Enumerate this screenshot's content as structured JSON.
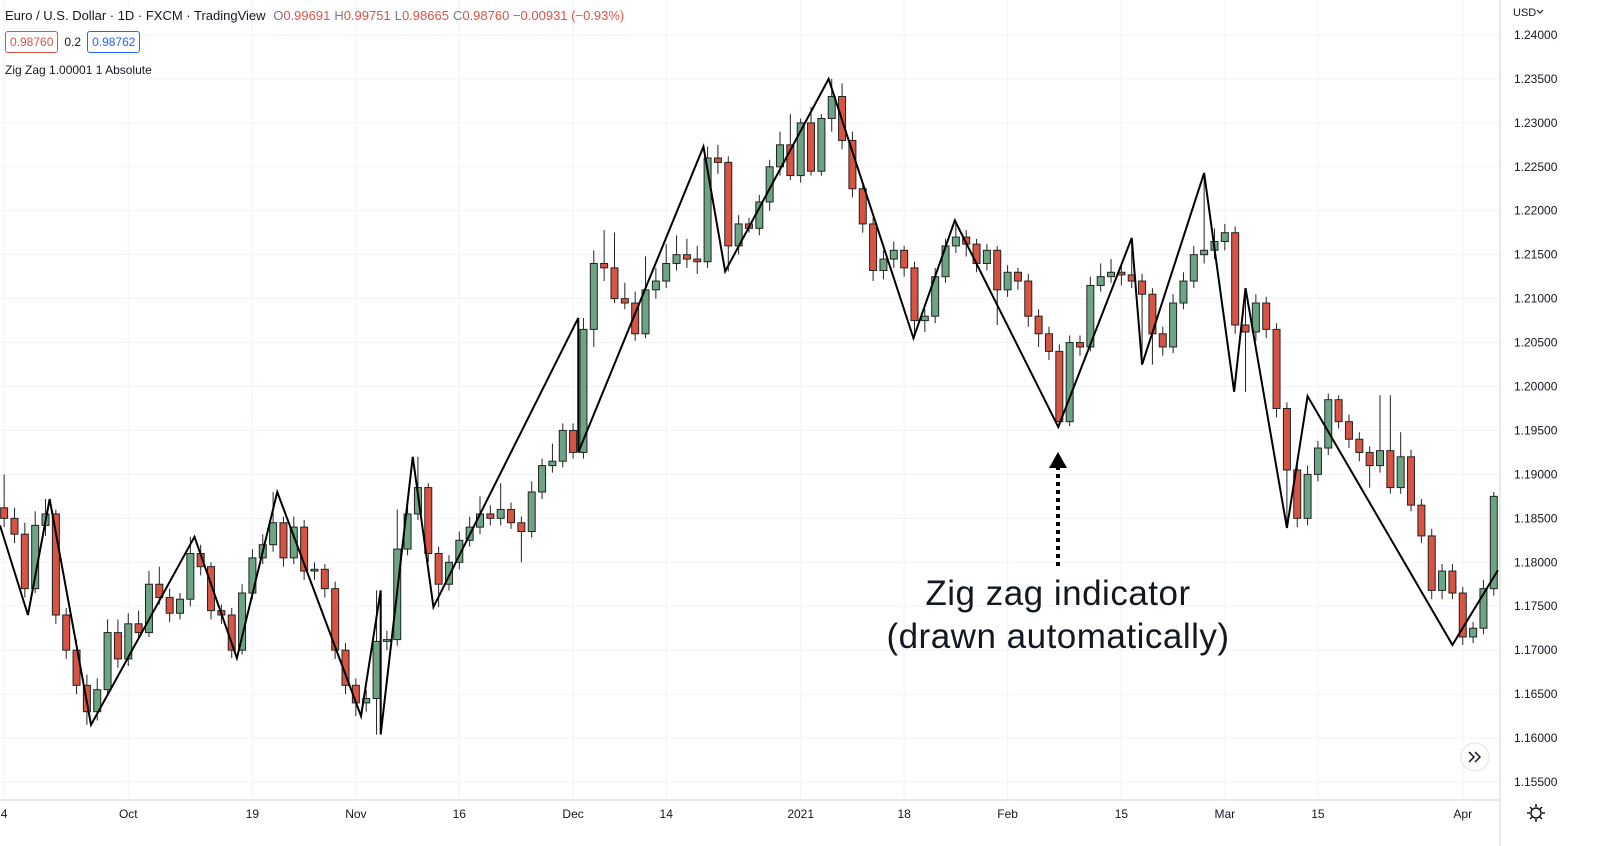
{
  "header": {
    "symbol": "Euro / U.S. Dollar · 1D · FXCM · TradingView",
    "ohlc": [
      {
        "label": "O",
        "value": "0.99691"
      },
      {
        "label": "H",
        "value": "0.99751"
      },
      {
        "label": "L",
        "value": "0.98665"
      },
      {
        "label": "C",
        "value": "0.98760"
      }
    ],
    "change": "−0.00931 (−0.93%)",
    "sell": "0.98760",
    "spread": "0.2",
    "buy": "0.98762",
    "indicator": "Zig Zag 1.00001 1 Absolute",
    "currency": "USD"
  },
  "annotation": [
    "Zig zag indicator",
    "(drawn automatically)"
  ],
  "chart_data": {
    "type": "candlestick",
    "up_color": "#6ba583",
    "down_color": "#d75442",
    "border_color": "#222222",
    "grid": true,
    "xlim": [
      -0.4,
      144.6
    ],
    "ylim": [
      1.15295,
      1.24398
    ],
    "xticks": [
      {
        "value": 0,
        "label": "4"
      },
      {
        "value": 12,
        "label": "Oct"
      },
      {
        "value": 24,
        "label": "19"
      },
      {
        "value": 34,
        "label": "Nov"
      },
      {
        "value": 44,
        "label": "16"
      },
      {
        "value": 55,
        "label": "Dec"
      },
      {
        "value": 64,
        "label": "14"
      },
      {
        "value": 77,
        "label": "2021"
      },
      {
        "value": 87,
        "label": "18"
      },
      {
        "value": 97,
        "label": "Feb"
      },
      {
        "value": 108,
        "label": "15"
      },
      {
        "value": 118,
        "label": "Mar"
      },
      {
        "value": 127,
        "label": "15"
      },
      {
        "value": 141,
        "label": "Apr"
      }
    ],
    "yticks": [
      {
        "value": 1.24,
        "label": "1.24000"
      },
      {
        "value": 1.235,
        "label": "1.23500"
      },
      {
        "value": 1.23,
        "label": "1.23000"
      },
      {
        "value": 1.225,
        "label": "1.22500"
      },
      {
        "value": 1.22,
        "label": "1.22000"
      },
      {
        "value": 1.215,
        "label": "1.21500"
      },
      {
        "value": 1.21,
        "label": "1.21000"
      },
      {
        "value": 1.205,
        "label": "1.20500"
      },
      {
        "value": 1.2,
        "label": "1.20000"
      },
      {
        "value": 1.195,
        "label": "1.19500"
      },
      {
        "value": 1.19,
        "label": "1.19000"
      },
      {
        "value": 1.185,
        "label": "1.18500"
      },
      {
        "value": 1.18,
        "label": "1.18000"
      },
      {
        "value": 1.175,
        "label": "1.17500"
      },
      {
        "value": 1.17,
        "label": "1.17000"
      },
      {
        "value": 1.165,
        "label": "1.16500"
      },
      {
        "value": 1.16,
        "label": "1.16000"
      },
      {
        "value": 1.155,
        "label": "1.15500"
      }
    ],
    "ohlc": [
      [
        1.1862,
        1.19,
        1.184,
        1.185
      ],
      [
        1.185,
        1.1862,
        1.1822,
        1.1832
      ],
      [
        1.1832,
        1.1845,
        1.176,
        1.177
      ],
      [
        1.177,
        1.1858,
        1.1765,
        1.1842
      ],
      [
        1.1842,
        1.1872,
        1.183,
        1.1855
      ],
      [
        1.1855,
        1.186,
        1.173,
        1.174
      ],
      [
        1.174,
        1.1748,
        1.169,
        1.17
      ],
      [
        1.17,
        1.1712,
        1.165,
        1.166
      ],
      [
        1.166,
        1.1672,
        1.1615,
        1.163
      ],
      [
        1.163,
        1.1668,
        1.162,
        1.1655
      ],
      [
        1.1655,
        1.1735,
        1.165,
        1.172
      ],
      [
        1.172,
        1.1735,
        1.168,
        1.169
      ],
      [
        1.169,
        1.1742,
        1.1682,
        1.173
      ],
      [
        1.173,
        1.1745,
        1.1712,
        1.172
      ],
      [
        1.172,
        1.179,
        1.1715,
        1.1775
      ],
      [
        1.1775,
        1.1795,
        1.1752,
        1.176
      ],
      [
        1.176,
        1.177,
        1.1732,
        1.1742
      ],
      [
        1.1742,
        1.1765,
        1.1735,
        1.1758
      ],
      [
        1.1758,
        1.1829,
        1.175,
        1.181
      ],
      [
        1.181,
        1.182,
        1.1785,
        1.1795
      ],
      [
        1.1795,
        1.18,
        1.1735,
        1.1745
      ],
      [
        1.1745,
        1.1752,
        1.173,
        1.174
      ],
      [
        1.174,
        1.1748,
        1.1691,
        1.17
      ],
      [
        1.17,
        1.1775,
        1.1695,
        1.1765
      ],
      [
        1.1765,
        1.1815,
        1.1758,
        1.1805
      ],
      [
        1.1805,
        1.1832,
        1.1798,
        1.182
      ],
      [
        1.182,
        1.188,
        1.1812,
        1.1845
      ],
      [
        1.1845,
        1.1852,
        1.1795,
        1.1805
      ],
      [
        1.1805,
        1.1852,
        1.1798,
        1.184
      ],
      [
        1.184,
        1.1848,
        1.178,
        1.179
      ],
      [
        1.179,
        1.18,
        1.178,
        1.1792
      ],
      [
        1.1792,
        1.1798,
        1.176,
        1.177
      ],
      [
        1.177,
        1.1778,
        1.169,
        1.17
      ],
      [
        1.17,
        1.1708,
        1.165,
        1.166
      ],
      [
        1.166,
        1.1668,
        1.1625,
        1.164
      ],
      [
        1.164,
        1.1655,
        1.163,
        1.1645
      ],
      [
        1.1645,
        1.1768,
        1.1604,
        1.171
      ],
      [
        1.171,
        1.1722,
        1.17,
        1.1712
      ],
      [
        1.1712,
        1.186,
        1.1705,
        1.1815
      ],
      [
        1.1815,
        1.187,
        1.1808,
        1.1855
      ],
      [
        1.1855,
        1.192,
        1.1848,
        1.1885
      ],
      [
        1.1885,
        1.189,
        1.18,
        1.181
      ],
      [
        1.181,
        1.1818,
        1.1749,
        1.1775
      ],
      [
        1.1775,
        1.1808,
        1.1768,
        1.18
      ],
      [
        1.18,
        1.1835,
        1.1792,
        1.1825
      ],
      [
        1.1825,
        1.1852,
        1.1818,
        1.184
      ],
      [
        1.184,
        1.1875,
        1.1832,
        1.1855
      ],
      [
        1.1855,
        1.1865,
        1.1842,
        1.185
      ],
      [
        1.185,
        1.189,
        1.1842,
        1.186
      ],
      [
        1.186,
        1.1868,
        1.1838,
        1.1845
      ],
      [
        1.1845,
        1.1852,
        1.18,
        1.1835
      ],
      [
        1.1835,
        1.1892,
        1.1828,
        1.188
      ],
      [
        1.188,
        1.1918,
        1.1872,
        1.191
      ],
      [
        1.191,
        1.1935,
        1.1902,
        1.1915
      ],
      [
        1.1915,
        1.1958,
        1.1908,
        1.195
      ],
      [
        1.195,
        1.1958,
        1.1918,
        1.1925
      ],
      [
        1.1925,
        1.2078,
        1.1918,
        1.2065
      ],
      [
        1.2065,
        1.2155,
        1.2045,
        1.214
      ],
      [
        1.214,
        1.2178,
        1.212,
        1.2135
      ],
      [
        1.2135,
        1.2175,
        1.2095,
        1.21
      ],
      [
        1.21,
        1.2118,
        1.2088,
        1.2095
      ],
      [
        1.2095,
        1.2108,
        1.2052,
        1.206
      ],
      [
        1.206,
        1.2148,
        1.2055,
        1.211
      ],
      [
        1.211,
        1.2135,
        1.21,
        1.212
      ],
      [
        1.212,
        1.2162,
        1.2112,
        1.214
      ],
      [
        1.214,
        1.2172,
        1.2132,
        1.215
      ],
      [
        1.215,
        1.2168,
        1.2135,
        1.2145
      ],
      [
        1.2145,
        1.216,
        1.2128,
        1.2142
      ],
      [
        1.2142,
        1.2273,
        1.2135,
        1.226
      ],
      [
        1.226,
        1.2275,
        1.2242,
        1.2255
      ],
      [
        1.2255,
        1.2262,
        1.2131,
        1.216
      ],
      [
        1.216,
        1.2195,
        1.215,
        1.2185
      ],
      [
        1.2185,
        1.2192,
        1.2175,
        1.218
      ],
      [
        1.218,
        1.2218,
        1.2172,
        1.221
      ],
      [
        1.221,
        1.2258,
        1.22,
        1.225
      ],
      [
        1.225,
        1.229,
        1.224,
        1.2275
      ],
      [
        1.2275,
        1.231,
        1.2235,
        1.224
      ],
      [
        1.224,
        1.2305,
        1.2232,
        1.23
      ],
      [
        1.23,
        1.2318,
        1.224,
        1.2245
      ],
      [
        1.2245,
        1.231,
        1.224,
        1.2305
      ],
      [
        1.2305,
        1.235,
        1.229,
        1.233
      ],
      [
        1.233,
        1.2345,
        1.227,
        1.228
      ],
      [
        1.228,
        1.229,
        1.2215,
        1.2225
      ],
      [
        1.2225,
        1.2232,
        1.2175,
        1.2185
      ],
      [
        1.2185,
        1.2192,
        1.212,
        1.2132
      ],
      [
        1.2132,
        1.2155,
        1.2122,
        1.2145
      ],
      [
        1.2145,
        1.2165,
        1.2135,
        1.2155
      ],
      [
        1.2155,
        1.216,
        1.2125,
        1.2135
      ],
      [
        1.2135,
        1.2142,
        1.2055,
        1.2075
      ],
      [
        1.2075,
        1.2088,
        1.2062,
        1.208
      ],
      [
        1.208,
        1.2135,
        1.2072,
        1.2125
      ],
      [
        1.2125,
        1.2168,
        1.2118,
        1.216
      ],
      [
        1.216,
        1.2189,
        1.2152,
        1.217
      ],
      [
        1.217,
        1.2178,
        1.2148,
        1.2162
      ],
      [
        1.2162,
        1.2168,
        1.213,
        1.214
      ],
      [
        1.214,
        1.2162,
        1.2132,
        1.2155
      ],
      [
        1.2155,
        1.216,
        1.207,
        1.211
      ],
      [
        1.211,
        1.2138,
        1.2102,
        1.213
      ],
      [
        1.213,
        1.2135,
        1.211,
        1.212
      ],
      [
        1.212,
        1.2128,
        1.2068,
        1.208
      ],
      [
        1.208,
        1.2088,
        1.2045,
        1.206
      ],
      [
        1.206,
        1.2068,
        1.203,
        1.204
      ],
      [
        1.204,
        1.2048,
        1.1954,
        1.196
      ],
      [
        1.196,
        1.2058,
        1.1955,
        1.205
      ],
      [
        1.205,
        1.2058,
        1.2035,
        1.2045
      ],
      [
        1.2045,
        1.2125,
        1.204,
        1.2115
      ],
      [
        1.2115,
        1.214,
        1.2108,
        1.2125
      ],
      [
        1.2125,
        1.2145,
        1.2118,
        1.213
      ],
      [
        1.213,
        1.2138,
        1.2115,
        1.2127
      ],
      [
        1.2127,
        1.2169,
        1.2112,
        1.212
      ],
      [
        1.212,
        1.2128,
        1.2025,
        1.2105
      ],
      [
        1.2105,
        1.2112,
        1.2025,
        1.206
      ],
      [
        1.206,
        1.2068,
        1.2035,
        1.2045
      ],
      [
        1.2045,
        1.2105,
        1.2038,
        1.2095
      ],
      [
        1.2095,
        1.213,
        1.2088,
        1.212
      ],
      [
        1.212,
        1.216,
        1.2112,
        1.215
      ],
      [
        1.215,
        1.2243,
        1.214,
        1.2155
      ],
      [
        1.2155,
        1.218,
        1.2145,
        1.2165
      ],
      [
        1.2165,
        1.2185,
        1.2155,
        1.2175
      ],
      [
        1.2175,
        1.2182,
        1.206,
        1.207
      ],
      [
        1.207,
        1.2112,
        1.1994,
        1.2062
      ],
      [
        1.2062,
        1.2105,
        1.2052,
        1.2095
      ],
      [
        1.2095,
        1.2102,
        1.2055,
        1.2065
      ],
      [
        1.2065,
        1.2072,
        1.1965,
        1.1975
      ],
      [
        1.1975,
        1.1982,
        1.1839,
        1.1905
      ],
      [
        1.1905,
        1.1912,
        1.184,
        1.185
      ],
      [
        1.185,
        1.191,
        1.1842,
        1.19
      ],
      [
        1.19,
        1.1938,
        1.1892,
        1.193
      ],
      [
        1.193,
        1.1992,
        1.1922,
        1.1985
      ],
      [
        1.1985,
        1.199,
        1.1952,
        1.196
      ],
      [
        1.196,
        1.1968,
        1.193,
        1.194
      ],
      [
        1.194,
        1.1948,
        1.1915,
        1.1925
      ],
      [
        1.1925,
        1.1932,
        1.1885,
        1.191
      ],
      [
        1.191,
        1.199,
        1.1902,
        1.1927
      ],
      [
        1.1927,
        1.199,
        1.1878,
        1.1885
      ],
      [
        1.1885,
        1.1948,
        1.1878,
        1.192
      ],
      [
        1.192,
        1.1928,
        1.1858,
        1.1865
      ],
      [
        1.1865,
        1.1872,
        1.1822,
        1.183
      ],
      [
        1.183,
        1.1838,
        1.1758,
        1.1768
      ],
      [
        1.1768,
        1.1798,
        1.1758,
        1.179
      ],
      [
        1.179,
        1.1798,
        1.1758,
        1.1765
      ],
      [
        1.1765,
        1.1772,
        1.1706,
        1.1715
      ],
      [
        1.1715,
        1.1732,
        1.1708,
        1.1725
      ],
      [
        1.1725,
        1.178,
        1.1718,
        1.177
      ],
      [
        1.177,
        1.188,
        1.1762,
        1.1875
      ]
    ],
    "zigzag": {
      "name": "Zig Zag",
      "color": "#000000",
      "x": [
        -0.4,
        2.3,
        4.4,
        8.4,
        18.4,
        22.5,
        26.4,
        34.5,
        36.4,
        36.4,
        39.5,
        41.5,
        55.5,
        55.5,
        67.6,
        69.7,
        79.7,
        87.9,
        91.9,
        101.9,
        109,
        110,
        116,
        118.9,
        120,
        124,
        126,
        140,
        144.4
      ],
      "values": [
        1.1842,
        1.174,
        1.1872,
        1.1615,
        1.1829,
        1.1691,
        1.188,
        1.1625,
        1.1768,
        1.1604,
        1.192,
        1.1749,
        1.2078,
        1.1925,
        1.2273,
        1.2131,
        1.235,
        1.2055,
        1.2189,
        1.1954,
        1.2169,
        1.2025,
        1.2243,
        1.1994,
        1.2112,
        1.1839,
        1.1989,
        1.1706,
        1.1791
      ]
    }
  }
}
